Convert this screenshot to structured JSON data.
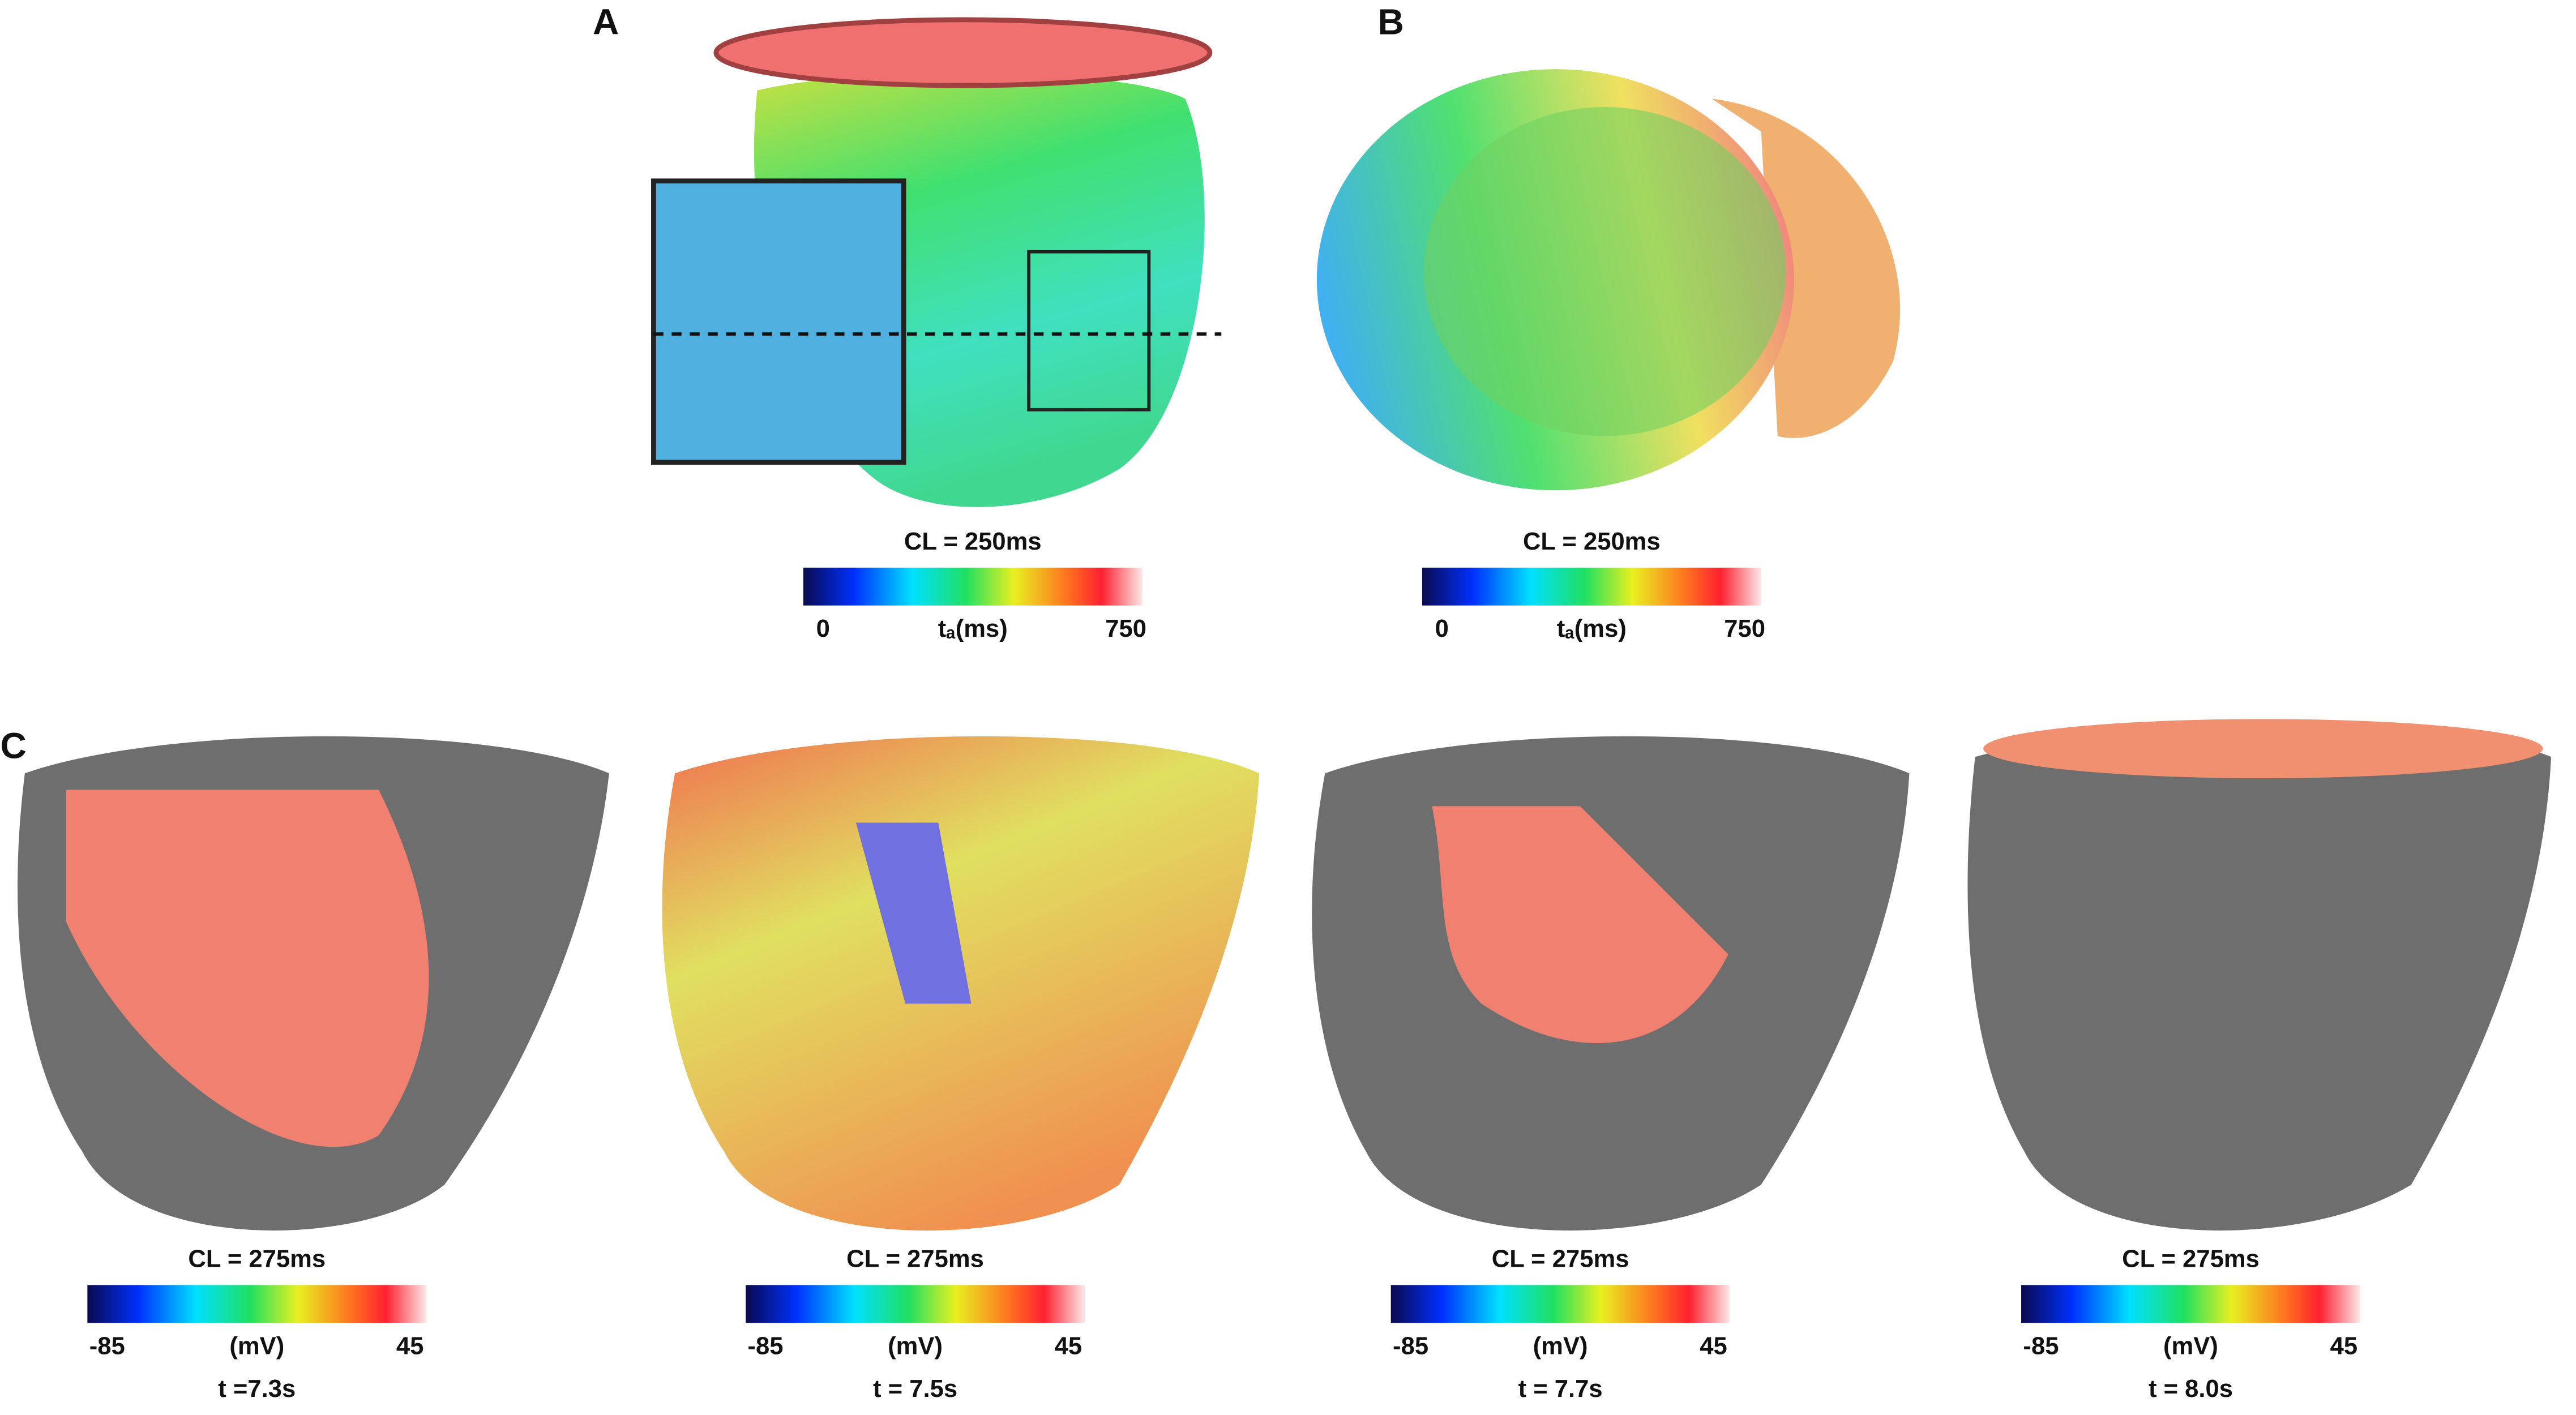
{
  "panels": [
    {
      "label": "A",
      "colorbar": {
        "title": "CL = 250ms",
        "min_label": "0",
        "unit": "tₐ(ms)",
        "max_label": "750"
      }
    },
    {
      "label": "B",
      "colorbar": {
        "title": "CL = 250ms",
        "min_label": "0",
        "unit": "tₐ(ms)",
        "max_label": "750"
      }
    },
    {
      "label": "C",
      "frames": [
        {
          "colorbar": {
            "title": "CL = 275ms",
            "min_label": "-85",
            "unit": "(mV)",
            "max_label": "45"
          },
          "time": "t =7.3s"
        },
        {
          "colorbar": {
            "title": "CL = 275ms",
            "min_label": "-85",
            "unit": "(mV)",
            "max_label": "45"
          },
          "time": "t = 7.5s"
        },
        {
          "colorbar": {
            "title": "CL = 275ms",
            "min_label": "-85",
            "unit": "(mV)",
            "max_label": "45"
          },
          "time": "t = 7.7s"
        },
        {
          "colorbar": {
            "title": "CL = 275ms",
            "min_label": "-85",
            "unit": "(mV)",
            "max_label": "45"
          },
          "time": "t = 8.0s"
        }
      ]
    }
  ]
}
